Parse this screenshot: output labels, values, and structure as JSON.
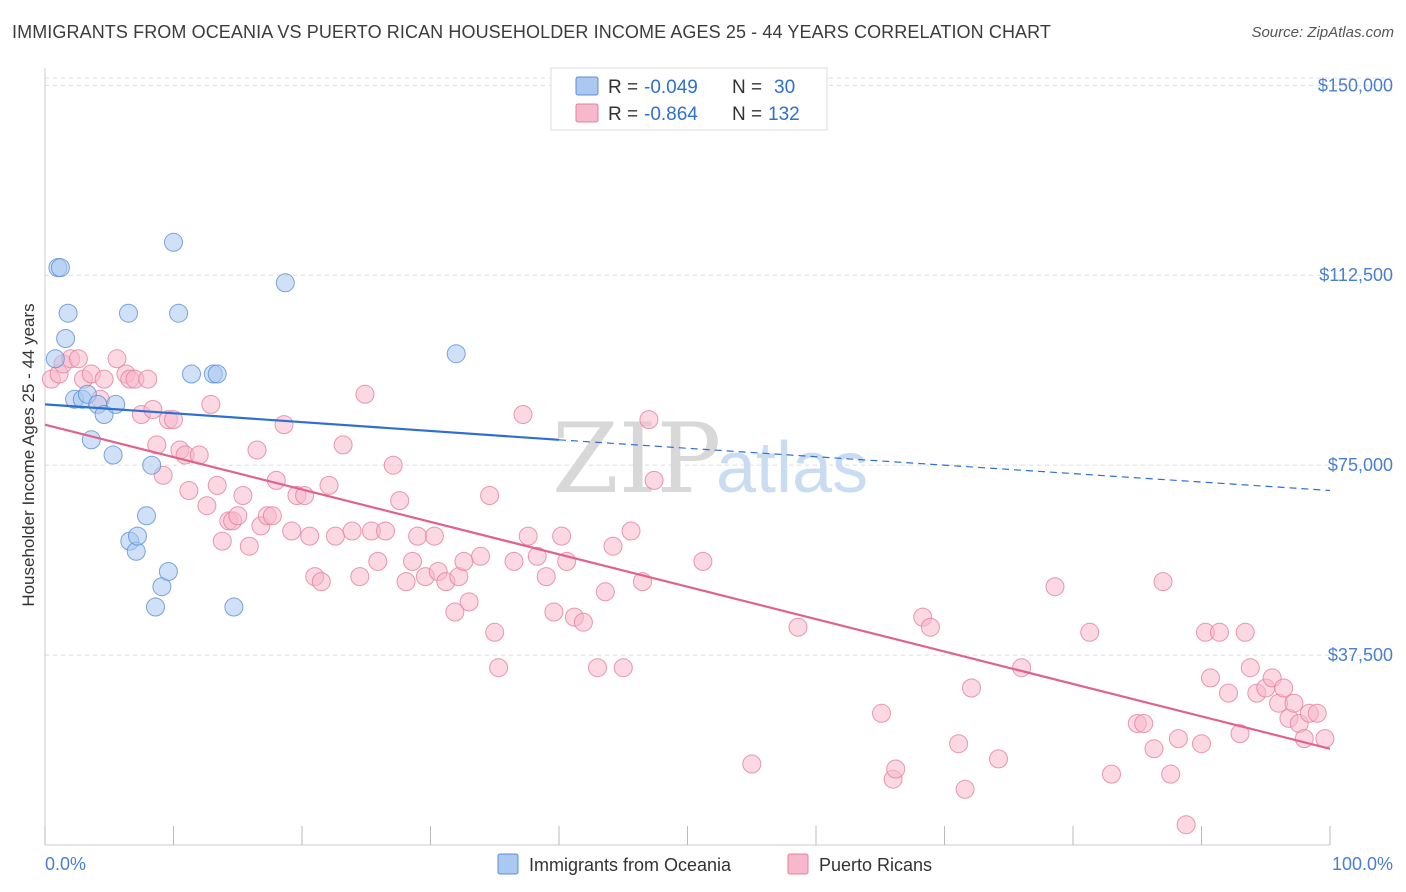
{
  "title": "IMMIGRANTS FROM OCEANIA VS PUERTO RICAN HOUSEHOLDER INCOME AGES 25 - 44 YEARS CORRELATION CHART",
  "source": "Source: ZipAtlas.com",
  "watermark": {
    "zip": "ZIP",
    "atlas": "atlas"
  },
  "legend_top": {
    "rows": [
      {
        "r_label": "R = ",
        "r_value": "-0.049",
        "n_label": "N = ",
        "n_value": "30",
        "color": "#aac8f0"
      },
      {
        "r_label": "R = ",
        "r_value": "-0.864",
        "n_label": "N = ",
        "n_value": "132",
        "color": "#f7b8cb"
      }
    ]
  },
  "legend_bottom": [
    {
      "label": "Immigrants from Oceania",
      "color": "#aac8f0"
    },
    {
      "label": "Puerto Ricans",
      "color": "#f7b8cb"
    }
  ],
  "chart_data": {
    "type": "scatter",
    "title": "IMMIGRANTS FROM OCEANIA VS PUERTO RICAN HOUSEHOLDER INCOME AGES 25 - 44 YEARS CORRELATION CHART",
    "ylabel": "Householder Income Ages 25 - 44 years",
    "xlabel": "",
    "x_tick_labels": [
      "0.0%",
      "100.0%"
    ],
    "y_ticks": [
      37500,
      75000,
      112500,
      150000
    ],
    "y_tick_labels": [
      "$37,500",
      "$75,000",
      "$112,500",
      "$150,000"
    ],
    "xlim": [
      0,
      100
    ],
    "ylim": [
      0,
      155000
    ],
    "grid": true,
    "legend_position": "top-center",
    "series": [
      {
        "name": "Immigrants from Oceania",
        "color": "#aac8f0",
        "stroke": "#5b8fd6",
        "trend_color": "#2f6fd1",
        "trend": {
          "x0": 0,
          "y0": 87000,
          "x1": 40,
          "y1": 80000,
          "dashed_x1": 100,
          "dashed_y1": 70000
        },
        "points": [
          [
            0.8,
            96000
          ],
          [
            1.0,
            114000
          ],
          [
            1.2,
            114000
          ],
          [
            1.6,
            100000
          ],
          [
            1.8,
            105000
          ],
          [
            2.3,
            88000
          ],
          [
            2.9,
            88000
          ],
          [
            3.3,
            89000
          ],
          [
            3.6,
            80000
          ],
          [
            4.1,
            87000
          ],
          [
            4.6,
            85000
          ],
          [
            5.3,
            77000
          ],
          [
            5.5,
            87000
          ],
          [
            6.5,
            105000
          ],
          [
            6.6,
            60000
          ],
          [
            7.1,
            58000
          ],
          [
            7.2,
            61000
          ],
          [
            7.9,
            65000
          ],
          [
            8.3,
            75000
          ],
          [
            8.6,
            47000
          ],
          [
            9.1,
            51000
          ],
          [
            9.6,
            54000
          ],
          [
            10.0,
            119000
          ],
          [
            10.4,
            105000
          ],
          [
            11.4,
            93000
          ],
          [
            13.1,
            93000
          ],
          [
            13.4,
            93000
          ],
          [
            14.7,
            47000
          ],
          [
            18.7,
            111000
          ],
          [
            32.0,
            97000
          ]
        ]
      },
      {
        "name": "Puerto Ricans",
        "color": "#f7b8cb",
        "stroke": "#e47fa0",
        "trend_color": "#e0628e",
        "trend": {
          "x0": 0,
          "y0": 83000,
          "x1": 100,
          "y1": 19000
        },
        "points": [
          [
            0.5,
            92000
          ],
          [
            1.1,
            93000
          ],
          [
            1.4,
            95000
          ],
          [
            2.0,
            96000
          ],
          [
            2.6,
            96000
          ],
          [
            3.0,
            92000
          ],
          [
            3.6,
            93000
          ],
          [
            4.3,
            88000
          ],
          [
            4.6,
            92000
          ],
          [
            5.6,
            96000
          ],
          [
            6.3,
            93000
          ],
          [
            6.6,
            92000
          ],
          [
            7.0,
            92000
          ],
          [
            7.5,
            85000
          ],
          [
            8.0,
            92000
          ],
          [
            8.4,
            86000
          ],
          [
            8.7,
            79000
          ],
          [
            9.2,
            73000
          ],
          [
            9.6,
            84000
          ],
          [
            10.0,
            84000
          ],
          [
            10.5,
            78000
          ],
          [
            10.9,
            77000
          ],
          [
            11.2,
            70000
          ],
          [
            12.0,
            77000
          ],
          [
            12.6,
            67000
          ],
          [
            12.9,
            87000
          ],
          [
            13.4,
            71000
          ],
          [
            13.8,
            60000
          ],
          [
            14.3,
            64000
          ],
          [
            14.6,
            64000
          ],
          [
            15.0,
            65000
          ],
          [
            15.4,
            69000
          ],
          [
            15.9,
            59000
          ],
          [
            16.5,
            78000
          ],
          [
            16.8,
            63000
          ],
          [
            17.3,
            65000
          ],
          [
            17.7,
            65000
          ],
          [
            18.0,
            72000
          ],
          [
            18.6,
            83000
          ],
          [
            19.2,
            62000
          ],
          [
            19.6,
            69000
          ],
          [
            20.2,
            69000
          ],
          [
            20.6,
            61000
          ],
          [
            21.0,
            53000
          ],
          [
            21.5,
            52000
          ],
          [
            22.1,
            71000
          ],
          [
            22.6,
            61000
          ],
          [
            23.2,
            79000
          ],
          [
            23.9,
            62000
          ],
          [
            24.5,
            53000
          ],
          [
            24.9,
            89000
          ],
          [
            25.4,
            62000
          ],
          [
            25.9,
            56000
          ],
          [
            26.5,
            62000
          ],
          [
            27.1,
            75000
          ],
          [
            27.6,
            68000
          ],
          [
            28.1,
            52000
          ],
          [
            28.6,
            56000
          ],
          [
            29.0,
            61000
          ],
          [
            29.6,
            53000
          ],
          [
            30.3,
            61000
          ],
          [
            30.6,
            54000
          ],
          [
            31.2,
            52000
          ],
          [
            31.9,
            46000
          ],
          [
            32.2,
            53000
          ],
          [
            32.6,
            56000
          ],
          [
            33.0,
            48000
          ],
          [
            33.9,
            57000
          ],
          [
            34.6,
            69000
          ],
          [
            35.0,
            42000
          ],
          [
            35.3,
            35000
          ],
          [
            36.5,
            56000
          ],
          [
            37.2,
            85000
          ],
          [
            37.6,
            61000
          ],
          [
            38.3,
            57000
          ],
          [
            39.0,
            53000
          ],
          [
            39.6,
            46000
          ],
          [
            40.2,
            61000
          ],
          [
            40.6,
            56000
          ],
          [
            41.2,
            45000
          ],
          [
            41.9,
            44000
          ],
          [
            43.0,
            35000
          ],
          [
            43.6,
            50000
          ],
          [
            44.2,
            59000
          ],
          [
            45.0,
            35000
          ],
          [
            45.6,
            62000
          ],
          [
            46.5,
            52000
          ],
          [
            47.0,
            84000
          ],
          [
            47.4,
            72000
          ],
          [
            51.2,
            56000
          ],
          [
            55.0,
            16000
          ],
          [
            58.6,
            43000
          ],
          [
            65.1,
            26000
          ],
          [
            66.0,
            13000
          ],
          [
            66.2,
            15000
          ],
          [
            68.3,
            45000
          ],
          [
            68.9,
            43000
          ],
          [
            71.1,
            20000
          ],
          [
            71.6,
            11000
          ],
          [
            72.1,
            31000
          ],
          [
            74.2,
            17000
          ],
          [
            76.0,
            35000
          ],
          [
            78.6,
            51000
          ],
          [
            81.3,
            42000
          ],
          [
            83.0,
            14000
          ],
          [
            85.0,
            24000
          ],
          [
            85.5,
            24000
          ],
          [
            86.3,
            19000
          ],
          [
            87.0,
            52000
          ],
          [
            87.6,
            14000
          ],
          [
            88.2,
            21000
          ],
          [
            88.8,
            4000
          ],
          [
            90.0,
            20000
          ],
          [
            90.3,
            42000
          ],
          [
            90.7,
            33000
          ],
          [
            91.4,
            42000
          ],
          [
            92.1,
            30000
          ],
          [
            93.0,
            22000
          ],
          [
            93.4,
            42000
          ],
          [
            93.8,
            35000
          ],
          [
            94.3,
            30000
          ],
          [
            95.0,
            31000
          ],
          [
            95.5,
            33000
          ],
          [
            96.0,
            28000
          ],
          [
            96.4,
            31000
          ],
          [
            96.8,
            25000
          ],
          [
            97.2,
            28000
          ],
          [
            97.6,
            24000
          ],
          [
            98.0,
            21000
          ],
          [
            98.4,
            26000
          ],
          [
            99.0,
            26000
          ],
          [
            99.6,
            21000
          ]
        ]
      }
    ]
  }
}
